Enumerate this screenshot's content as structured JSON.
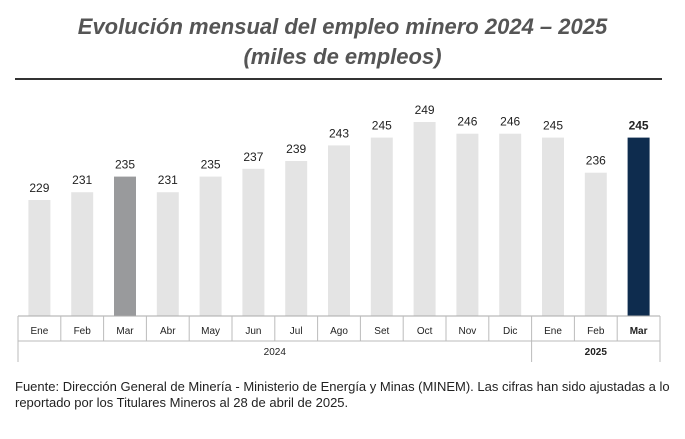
{
  "title": {
    "line1": "Evolución mensual del empleo minero 2024 – 2025",
    "line2": "(miles de empleos)"
  },
  "chart_data": {
    "type": "bar",
    "title": "Evolución mensual del empleo minero 2024 – 2025 (miles de empleos)",
    "xlabel": "",
    "ylabel": "",
    "ylim": [
      0,
      255
    ],
    "grid": false,
    "legend": "none",
    "categories": [
      "Ene",
      "Feb",
      "Mar",
      "Abr",
      "May",
      "Jun",
      "Jul",
      "Ago",
      "Set",
      "Oct",
      "Nov",
      "Dic",
      "Ene",
      "Feb",
      "Mar"
    ],
    "values": [
      229,
      231,
      235,
      231,
      235,
      237,
      239,
      243,
      245,
      249,
      246,
      246,
      245,
      236,
      245
    ],
    "years": [
      {
        "label": "2024",
        "start": 0,
        "count": 12,
        "bold": false
      },
      {
        "label": "2025",
        "start": 12,
        "count": 3,
        "bold": true
      }
    ],
    "bar_colors": {
      "default": "#e4e4e4",
      "highlight_mar_2024": "#999a9c",
      "current": "#0e2c4e"
    },
    "highlight_index": 2,
    "current_index": 14
  },
  "source": "Fuente: Dirección General de Minería - Ministerio de Energía y Minas (MINEM). Las cifras han sido ajustadas a lo reportado por los Titulares Mineros al 28 de abril de 2025."
}
